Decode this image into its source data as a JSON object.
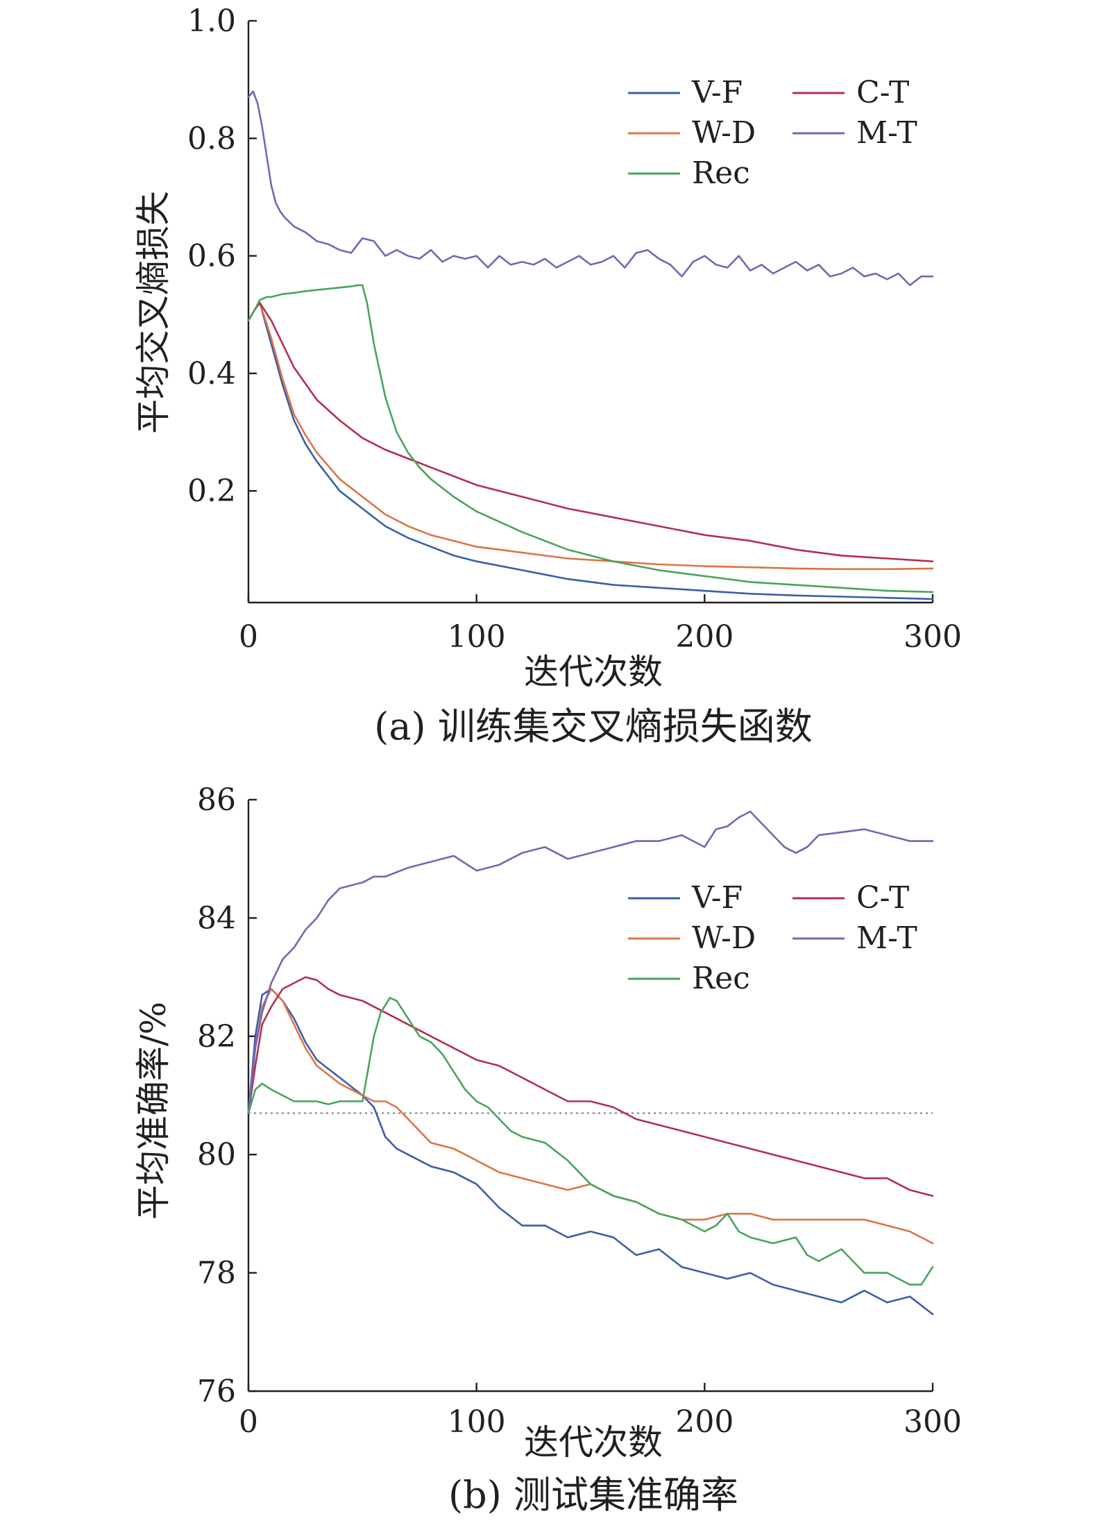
{
  "colors": {
    "V-F": "#3a5fa8",
    "W-D": "#dd7445",
    "Rec": "#4aa35a",
    "C-T": "#b3304c",
    "M-T": "#7466b0",
    "axis": "#231f20",
    "reference": "#808080"
  },
  "chart_data": [
    {
      "type": "line",
      "title": "(a) 训练集交叉熵损失函数",
      "xlabel": "迭代次数",
      "ylabel": "平均交叉熵损失",
      "xlim": [
        0,
        300
      ],
      "ylim": [
        0.01,
        1.0
      ],
      "xticks": [
        0,
        100,
        200,
        300
      ],
      "xtick_labels": [
        "0",
        "100",
        "200",
        "300"
      ],
      "yticks": [
        0.2,
        0.4,
        0.6,
        0.8,
        1.0
      ],
      "ytick_labels": [
        "0.2",
        "0.4",
        "0.6",
        "0.8",
        "1.0"
      ],
      "legend": [
        "V-F",
        "C-T",
        "W-D",
        "M-T",
        "Rec"
      ],
      "legend_position": "top-right",
      "series": [
        {
          "name": "V-F",
          "x": [
            0,
            3,
            5,
            10,
            15,
            20,
            25,
            30,
            40,
            50,
            60,
            70,
            80,
            90,
            100,
            120,
            140,
            160,
            180,
            200,
            220,
            240,
            260,
            280,
            300
          ],
          "values": [
            0.49,
            0.51,
            0.52,
            0.45,
            0.38,
            0.32,
            0.28,
            0.25,
            0.2,
            0.17,
            0.14,
            0.12,
            0.105,
            0.09,
            0.08,
            0.065,
            0.05,
            0.04,
            0.035,
            0.03,
            0.025,
            0.022,
            0.02,
            0.018,
            0.016
          ]
        },
        {
          "name": "W-D",
          "x": [
            0,
            3,
            5,
            10,
            15,
            20,
            25,
            30,
            40,
            50,
            60,
            70,
            80,
            90,
            100,
            120,
            140,
            160,
            180,
            200,
            220,
            240,
            260,
            280,
            300
          ],
          "values": [
            0.49,
            0.51,
            0.52,
            0.46,
            0.39,
            0.33,
            0.295,
            0.265,
            0.22,
            0.19,
            0.16,
            0.14,
            0.125,
            0.115,
            0.105,
            0.095,
            0.085,
            0.08,
            0.075,
            0.072,
            0.07,
            0.068,
            0.067,
            0.067,
            0.068
          ]
        },
        {
          "name": "C-T",
          "x": [
            0,
            3,
            5,
            10,
            15,
            20,
            30,
            40,
            50,
            60,
            70,
            80,
            90,
            100,
            120,
            140,
            160,
            180,
            200,
            220,
            240,
            260,
            280,
            300
          ],
          "values": [
            0.49,
            0.51,
            0.52,
            0.49,
            0.45,
            0.41,
            0.355,
            0.32,
            0.29,
            0.27,
            0.255,
            0.24,
            0.225,
            0.21,
            0.19,
            0.17,
            0.155,
            0.14,
            0.125,
            0.115,
            0.1,
            0.09,
            0.085,
            0.08
          ]
        },
        {
          "name": "M-T",
          "x": [
            0,
            2,
            4,
            6,
            8,
            10,
            12,
            14,
            16,
            20,
            25,
            30,
            35,
            40,
            45,
            50,
            55,
            60,
            65,
            70,
            75,
            80,
            85,
            90,
            95,
            100,
            105,
            110,
            115,
            120,
            125,
            130,
            135,
            140,
            145,
            150,
            155,
            160,
            165,
            170,
            175,
            180,
            185,
            190,
            195,
            200,
            205,
            210,
            215,
            220,
            225,
            230,
            235,
            240,
            245,
            250,
            255,
            260,
            265,
            270,
            275,
            280,
            285,
            290,
            295,
            300
          ],
          "values": [
            0.87,
            0.88,
            0.86,
            0.82,
            0.77,
            0.72,
            0.69,
            0.675,
            0.665,
            0.65,
            0.64,
            0.625,
            0.62,
            0.61,
            0.605,
            0.63,
            0.625,
            0.6,
            0.61,
            0.6,
            0.595,
            0.61,
            0.59,
            0.6,
            0.595,
            0.6,
            0.58,
            0.6,
            0.585,
            0.59,
            0.585,
            0.595,
            0.58,
            0.59,
            0.6,
            0.585,
            0.59,
            0.6,
            0.58,
            0.605,
            0.61,
            0.595,
            0.585,
            0.565,
            0.59,
            0.6,
            0.585,
            0.58,
            0.6,
            0.575,
            0.585,
            0.57,
            0.58,
            0.59,
            0.575,
            0.585,
            0.565,
            0.57,
            0.58,
            0.565,
            0.57,
            0.56,
            0.57,
            0.55,
            0.565,
            0.565
          ]
        },
        {
          "name": "Rec",
          "x": [
            0,
            3,
            5,
            8,
            10,
            15,
            20,
            25,
            30,
            35,
            40,
            45,
            48,
            50,
            52,
            55,
            60,
            65,
            70,
            75,
            80,
            90,
            100,
            120,
            140,
            160,
            180,
            200,
            220,
            240,
            260,
            280,
            300
          ],
          "values": [
            0.49,
            0.51,
            0.525,
            0.53,
            0.53,
            0.535,
            0.537,
            0.54,
            0.542,
            0.544,
            0.546,
            0.548,
            0.55,
            0.55,
            0.52,
            0.45,
            0.36,
            0.3,
            0.265,
            0.24,
            0.22,
            0.19,
            0.165,
            0.13,
            0.1,
            0.08,
            0.065,
            0.055,
            0.045,
            0.04,
            0.035,
            0.03,
            0.028
          ]
        }
      ]
    },
    {
      "type": "line",
      "title": "(b) 测试集准确率",
      "xlabel": "迭代次数",
      "ylabel": "平均准确率/%",
      "xlim": [
        0,
        300
      ],
      "ylim": [
        76,
        86
      ],
      "xticks": [
        0,
        100,
        200,
        300
      ],
      "xtick_labels": [
        "0",
        "100",
        "200",
        "300"
      ],
      "yticks": [
        76,
        78,
        80,
        82,
        84,
        86
      ],
      "ytick_labels": [
        "76",
        "78",
        "80",
        "82",
        "84",
        "86"
      ],
      "reference_line": 80.7,
      "legend": [
        "V-F",
        "C-T",
        "W-D",
        "M-T",
        "Rec"
      ],
      "legend_position": "top-right",
      "series": [
        {
          "name": "V-F",
          "x": [
            0,
            3,
            6,
            10,
            15,
            20,
            25,
            30,
            40,
            50,
            55,
            60,
            65,
            70,
            80,
            90,
            95,
            100,
            110,
            120,
            130,
            140,
            150,
            160,
            170,
            180,
            190,
            200,
            210,
            220,
            230,
            240,
            250,
            260,
            270,
            280,
            290,
            300
          ],
          "values": [
            80.7,
            82.0,
            82.7,
            82.8,
            82.6,
            82.3,
            81.9,
            81.6,
            81.3,
            81.0,
            80.8,
            80.3,
            80.1,
            80.0,
            79.8,
            79.7,
            79.6,
            79.5,
            79.1,
            78.8,
            78.8,
            78.6,
            78.7,
            78.6,
            78.3,
            78.4,
            78.1,
            78.0,
            77.9,
            78.0,
            77.8,
            77.7,
            77.6,
            77.5,
            77.7,
            77.5,
            77.6,
            77.3
          ]
        },
        {
          "name": "W-D",
          "x": [
            0,
            3,
            6,
            10,
            15,
            20,
            25,
            30,
            40,
            50,
            55,
            60,
            65,
            70,
            80,
            90,
            100,
            110,
            120,
            130,
            140,
            150,
            160,
            170,
            180,
            190,
            200,
            210,
            220,
            230,
            240,
            250,
            260,
            270,
            280,
            290,
            300
          ],
          "values": [
            80.7,
            81.8,
            82.5,
            82.8,
            82.6,
            82.2,
            81.8,
            81.5,
            81.2,
            81.0,
            80.9,
            80.9,
            80.8,
            80.6,
            80.2,
            80.1,
            79.9,
            79.7,
            79.6,
            79.5,
            79.4,
            79.5,
            79.3,
            79.2,
            79.0,
            78.9,
            78.9,
            79.0,
            79.0,
            78.9,
            78.9,
            78.9,
            78.9,
            78.9,
            78.8,
            78.7,
            78.5
          ]
        },
        {
          "name": "C-T",
          "x": [
            0,
            3,
            6,
            10,
            15,
            20,
            25,
            30,
            35,
            40,
            50,
            60,
            70,
            80,
            90,
            100,
            110,
            120,
            130,
            140,
            150,
            160,
            170,
            180,
            190,
            200,
            210,
            220,
            230,
            240,
            250,
            260,
            270,
            280,
            290,
            300
          ],
          "values": [
            80.7,
            81.5,
            82.2,
            82.5,
            82.8,
            82.9,
            83.0,
            82.95,
            82.8,
            82.7,
            82.6,
            82.4,
            82.2,
            82.0,
            81.8,
            81.6,
            81.5,
            81.3,
            81.1,
            80.9,
            80.9,
            80.8,
            80.6,
            80.5,
            80.4,
            80.3,
            80.2,
            80.1,
            80.0,
            79.9,
            79.8,
            79.7,
            79.6,
            79.6,
            79.4,
            79.3
          ]
        },
        {
          "name": "M-T",
          "x": [
            0,
            3,
            6,
            10,
            15,
            20,
            25,
            30,
            35,
            40,
            45,
            50,
            55,
            60,
            70,
            80,
            90,
            100,
            110,
            120,
            130,
            140,
            150,
            160,
            170,
            180,
            190,
            200,
            205,
            210,
            215,
            220,
            225,
            230,
            235,
            240,
            245,
            250,
            260,
            270,
            280,
            290,
            300
          ],
          "values": [
            80.7,
            81.8,
            82.4,
            82.9,
            83.3,
            83.5,
            83.8,
            84.0,
            84.3,
            84.5,
            84.55,
            84.6,
            84.7,
            84.7,
            84.85,
            84.95,
            85.05,
            84.8,
            84.9,
            85.1,
            85.2,
            85.0,
            85.1,
            85.2,
            85.3,
            85.3,
            85.4,
            85.2,
            85.5,
            85.55,
            85.7,
            85.8,
            85.6,
            85.4,
            85.2,
            85.1,
            85.2,
            85.4,
            85.45,
            85.5,
            85.4,
            85.3,
            85.3
          ]
        },
        {
          "name": "Rec",
          "x": [
            0,
            3,
            6,
            10,
            15,
            20,
            25,
            30,
            35,
            40,
            45,
            50,
            55,
            58,
            62,
            65,
            70,
            75,
            80,
            85,
            90,
            95,
            100,
            105,
            110,
            115,
            120,
            130,
            140,
            150,
            160,
            170,
            180,
            190,
            200,
            205,
            210,
            215,
            220,
            230,
            240,
            245,
            250,
            255,
            260,
            265,
            270,
            280,
            285,
            290,
            295,
            300
          ],
          "values": [
            80.7,
            81.1,
            81.2,
            81.1,
            81.0,
            80.9,
            80.9,
            80.9,
            80.85,
            80.9,
            80.9,
            80.9,
            82.0,
            82.4,
            82.65,
            82.6,
            82.3,
            82.0,
            81.9,
            81.7,
            81.4,
            81.1,
            80.9,
            80.8,
            80.6,
            80.4,
            80.3,
            80.2,
            79.9,
            79.5,
            79.3,
            79.2,
            79.0,
            78.9,
            78.7,
            78.8,
            79.0,
            78.7,
            78.6,
            78.5,
            78.6,
            78.3,
            78.2,
            78.3,
            78.4,
            78.2,
            78.0,
            78.0,
            77.9,
            77.8,
            77.8,
            78.1
          ]
        }
      ]
    }
  ]
}
